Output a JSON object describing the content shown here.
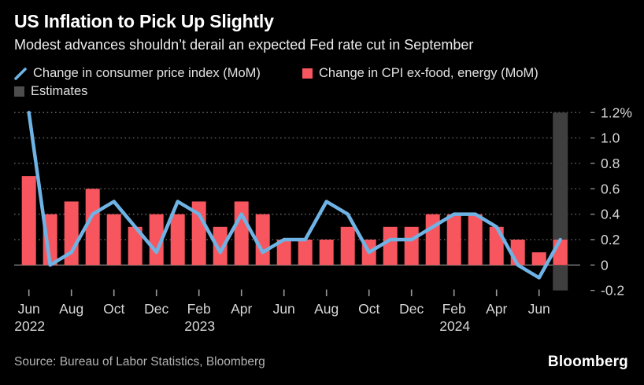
{
  "header": {
    "title": "US Inflation to Pick Up Slightly",
    "subtitle": "Modest advances shouldn’t derail an expected Fed rate cut in September"
  },
  "legend": {
    "items": [
      {
        "label": "Change in consumer price index (MoM)",
        "marker": "line-slash",
        "color": "#6fb3e5"
      },
      {
        "label": "Change in CPI ex-food, energy (MoM)",
        "marker": "square",
        "color": "#f7565e"
      },
      {
        "label": "Estimates",
        "marker": "square",
        "color": "#4d4d4d"
      }
    ]
  },
  "chart_data": {
    "type": "combo-bar-line",
    "title": "US Inflation to Pick Up Slightly",
    "x": [
      "Jun 2022",
      "Jul 2022",
      "Aug 2022",
      "Sep 2022",
      "Oct 2022",
      "Nov 2022",
      "Dec 2022",
      "Jan 2023",
      "Feb 2023",
      "Mar 2023",
      "Apr 2023",
      "May 2023",
      "Jun 2023",
      "Jul 2023",
      "Aug 2023",
      "Sep 2023",
      "Oct 2023",
      "Nov 2023",
      "Dec 2023",
      "Jan 2024",
      "Feb 2024",
      "Mar 2024",
      "Apr 2024",
      "May 2024",
      "Jun 2024",
      "Jul 2024 (est.)"
    ],
    "series": [
      {
        "name": "Change in consumer price index (MoM)",
        "type": "line",
        "color": "#6fb3e5",
        "values": [
          1.2,
          0.0,
          0.1,
          0.4,
          0.5,
          0.3,
          0.1,
          0.5,
          0.4,
          0.1,
          0.4,
          0.1,
          0.2,
          0.2,
          0.5,
          0.4,
          0.1,
          0.2,
          0.2,
          0.3,
          0.4,
          0.4,
          0.3,
          0.0,
          -0.1,
          0.2
        ]
      },
      {
        "name": "Change in CPI ex-food, energy (MoM)",
        "type": "bar",
        "color": "#f7565e",
        "values": [
          0.7,
          0.4,
          0.5,
          0.6,
          0.4,
          0.3,
          0.4,
          0.4,
          0.5,
          0.3,
          0.5,
          0.4,
          0.2,
          0.2,
          0.2,
          0.3,
          0.2,
          0.3,
          0.3,
          0.4,
          0.4,
          0.4,
          0.3,
          0.2,
          0.1,
          0.2
        ]
      },
      {
        "name": "Estimates",
        "type": "background-band",
        "color": "#3f3f3f",
        "x": "Jul 2024 (est.)",
        "x_index": 25,
        "span": [
          -0.2,
          1.2
        ]
      }
    ],
    "ylim": [
      -0.2,
      1.2
    ],
    "unit": "%",
    "grid": "dotted-horizontal",
    "zero_line": true,
    "legend_position": "top",
    "y_ticks": [
      {
        "value": 1.2,
        "label": "1.2%"
      },
      {
        "value": 1.0,
        "label": "1.0"
      },
      {
        "value": 0.8,
        "label": "0.8"
      },
      {
        "value": 0.6,
        "label": "0.6"
      },
      {
        "value": 0.4,
        "label": "0.4"
      },
      {
        "value": 0.2,
        "label": "0.2"
      },
      {
        "value": 0.0,
        "label": "0"
      },
      {
        "value": -0.2,
        "label": "-0.2"
      }
    ],
    "x_ticks": [
      {
        "index": 0,
        "label": "Jun",
        "year": "2022"
      },
      {
        "index": 2,
        "label": "Aug"
      },
      {
        "index": 4,
        "label": "Oct"
      },
      {
        "index": 6,
        "label": "Dec"
      },
      {
        "index": 8,
        "label": "Feb",
        "year": "2023"
      },
      {
        "index": 10,
        "label": "Apr"
      },
      {
        "index": 12,
        "label": "Jun"
      },
      {
        "index": 14,
        "label": "Aug"
      },
      {
        "index": 16,
        "label": "Oct"
      },
      {
        "index": 18,
        "label": "Dec"
      },
      {
        "index": 20,
        "label": "Feb",
        "year": "2024"
      },
      {
        "index": 22,
        "label": "Apr"
      },
      {
        "index": 24,
        "label": "Jun"
      }
    ]
  },
  "footer": {
    "source": "Source: Bureau of Labor Statistics, Bloomberg",
    "logo": "Bloomberg"
  },
  "colors": {
    "background": "#000000",
    "bars": "#f7565e",
    "line": "#6fb3e5",
    "estimates_band": "#3f3f3f",
    "estimates_legend": "#4d4d4d",
    "grid_dotted": "#626262",
    "zero_line": "#7d7d7d",
    "axis_text": "#d6d6d6",
    "tick": "#9a9a9a",
    "minor_tick": "#8a8a8a",
    "title_text": "#ffffff",
    "subtitle_text": "#ececec",
    "legend_text": "#e2e2e2",
    "source_text": "#b3b3b3"
  }
}
